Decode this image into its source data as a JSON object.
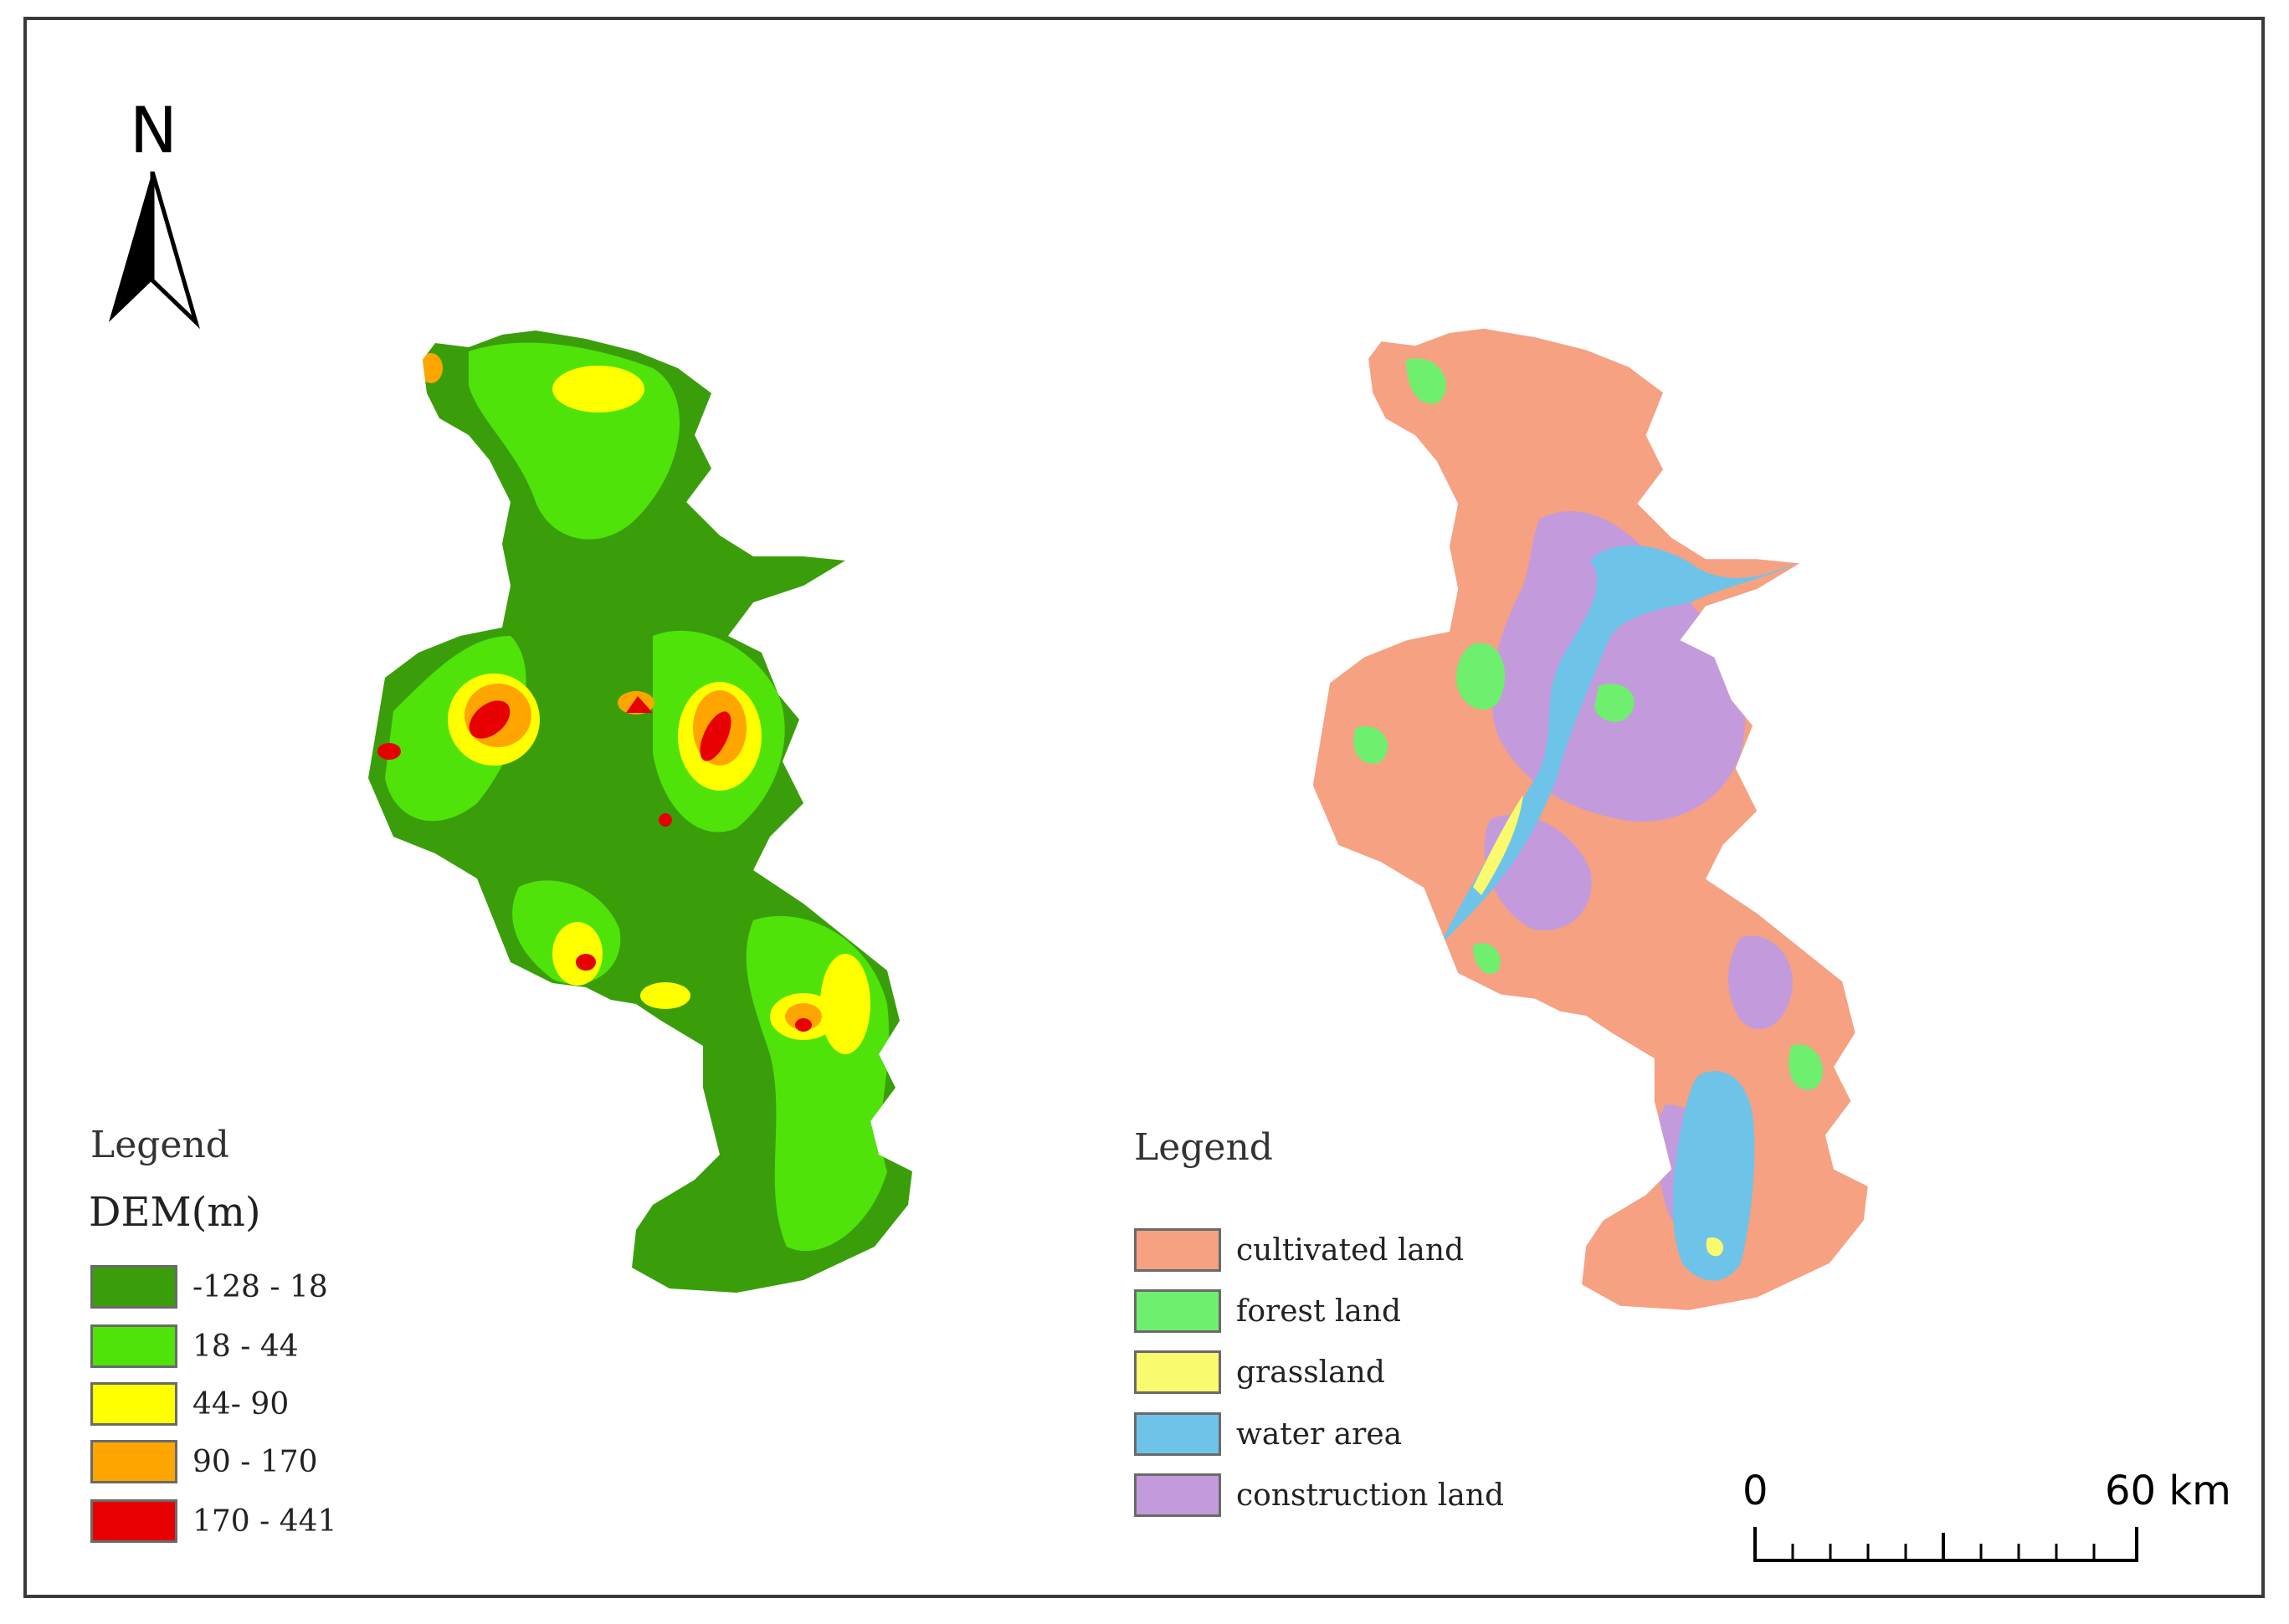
{
  "north": {
    "letter": "N",
    "icon": "north-arrow-icon"
  },
  "dem_legend": {
    "title": "Legend",
    "subtitle": "DEM(m)",
    "items": [
      {
        "label": "-128 - 18",
        "color": "#3a9e0a"
      },
      {
        "label": "18 - 44",
        "color": "#4fe30a"
      },
      {
        "label": "44- 90",
        "color": "#ffff00"
      },
      {
        "label": "90 - 170",
        "color": "#ffa500"
      },
      {
        "label": "170 - 441",
        "color": "#e60000"
      }
    ]
  },
  "landuse_legend": {
    "title": "Legend",
    "items": [
      {
        "label": "cultivated land",
        "color": "#f5a182"
      },
      {
        "label": "forest land",
        "color": "#6ef06e"
      },
      {
        "label": "grassland",
        "color": "#fafa6e"
      },
      {
        "label": "water area",
        "color": "#6ec3e8"
      },
      {
        "label": "construction land",
        "color": "#c39bdc"
      }
    ]
  },
  "scale": {
    "start_label": "0",
    "end_label": "60 km",
    "distance_km": 60
  }
}
